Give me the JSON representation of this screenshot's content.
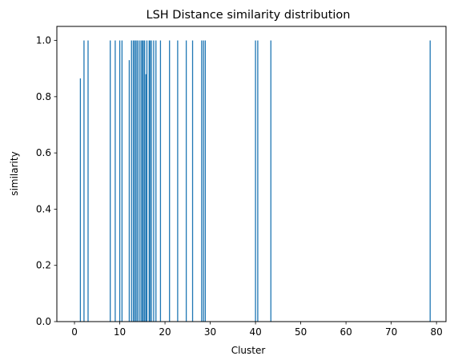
{
  "chart_data": {
    "type": "bar",
    "title": "LSH Distance similarity distribution",
    "xlabel": "Cluster",
    "ylabel": "similarity",
    "xlim": [
      -3.9,
      82.1
    ],
    "ylim": [
      0,
      1.05
    ],
    "xticks": [
      0,
      10,
      20,
      30,
      40,
      50,
      60,
      70,
      80
    ],
    "yticks": [
      0.0,
      0.2,
      0.4,
      0.6,
      0.8,
      1.0
    ],
    "xtick_labels": [
      "0",
      "10",
      "20",
      "30",
      "40",
      "50",
      "60",
      "70",
      "80"
    ],
    "ytick_labels": [
      "0.0",
      "0.2",
      "0.4",
      "0.6",
      "0.8",
      "1.0"
    ],
    "grid": false,
    "bar_color": "#1f77b4",
    "x": [
      1.3,
      2.1,
      3.0,
      7.9,
      9.0,
      10.0,
      10.5,
      12.1,
      12.6,
      13.0,
      13.3,
      13.6,
      13.9,
      14.3,
      14.7,
      15.0,
      15.2,
      15.5,
      15.8,
      16.0,
      16.5,
      16.7,
      17.0,
      17.5,
      18.0,
      19.0,
      21.0,
      22.8,
      24.7,
      26.1,
      28.1,
      28.5,
      28.9,
      40.0,
      40.5,
      43.4,
      78.6
    ],
    "values": [
      0.865,
      1.0,
      1.0,
      1.0,
      1.0,
      1.0,
      1.0,
      0.93,
      1.0,
      1.0,
      1.0,
      1.0,
      1.0,
      1.0,
      1.0,
      1.0,
      1.0,
      1.0,
      0.88,
      1.0,
      1.0,
      1.0,
      1.0,
      1.0,
      1.0,
      1.0,
      1.0,
      1.0,
      1.0,
      1.0,
      1.0,
      1.0,
      1.0,
      1.0,
      1.0,
      1.0,
      1.0
    ]
  }
}
